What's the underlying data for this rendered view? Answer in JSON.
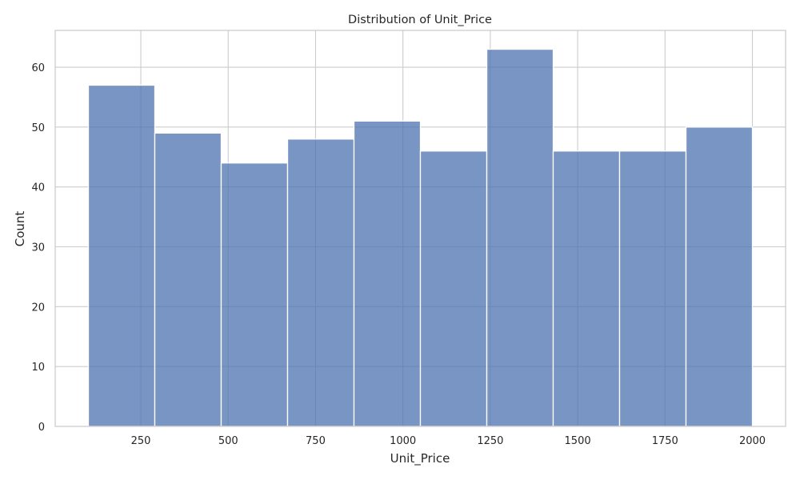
{
  "chart_data": {
    "type": "bar",
    "subtype": "histogram",
    "title": "Distribution of Unit_Price",
    "xlabel": "Unit_Price",
    "ylabel": "Count",
    "bins": [
      {
        "x0": 100,
        "x1": 290,
        "count": 57
      },
      {
        "x0": 290,
        "x1": 480,
        "count": 49
      },
      {
        "x0": 480,
        "x1": 670,
        "count": 44
      },
      {
        "x0": 670,
        "x1": 860,
        "count": 48
      },
      {
        "x0": 860,
        "x1": 1050,
        "count": 51
      },
      {
        "x0": 1050,
        "x1": 1240,
        "count": 46
      },
      {
        "x0": 1240,
        "x1": 1430,
        "count": 63
      },
      {
        "x0": 1430,
        "x1": 1620,
        "count": 46
      },
      {
        "x0": 1620,
        "x1": 1810,
        "count": 46
      },
      {
        "x0": 1810,
        "x1": 2000,
        "count": 50
      }
    ],
    "xlim": [
      5,
      2095
    ],
    "ylim": [
      0,
      66.15
    ],
    "xticks": [
      250,
      500,
      750,
      1000,
      1250,
      1500,
      1750,
      2000
    ],
    "yticks": [
      0,
      10,
      20,
      30,
      40,
      50,
      60
    ],
    "grid": true,
    "colors": {
      "bar_fill": "#4C72B0",
      "bar_edge": "#ffffff",
      "grid": "#cccccc",
      "frame": "#cccccc",
      "text": "#262626"
    }
  }
}
